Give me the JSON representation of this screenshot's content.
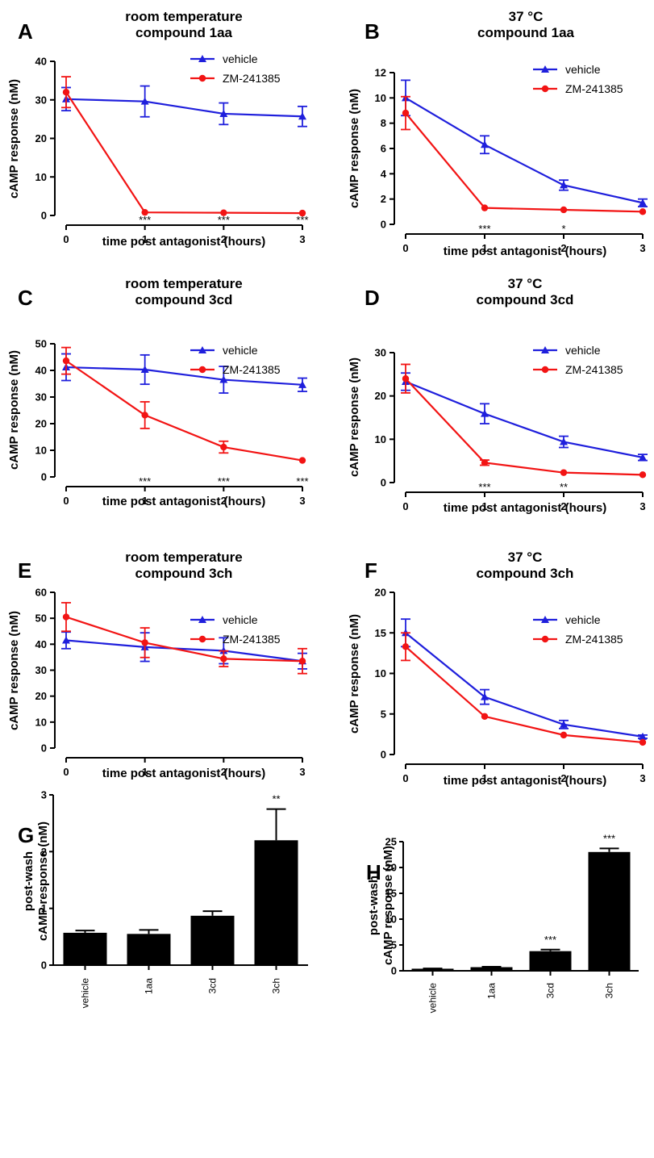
{
  "colors": {
    "vehicle": "#1f1fdc",
    "antagonist": "#f21414",
    "bar": "#000000",
    "axis": "#000000"
  },
  "chart_data": [
    {
      "panel": "A",
      "type": "line",
      "title_lines": [
        "room temperature",
        "compound 1aa"
      ],
      "xlabel": "time post antagonist (hours)",
      "ylabel": "cAMP response (nM)",
      "x": [
        0,
        1,
        2,
        3
      ],
      "xticks": [
        0,
        1,
        2,
        3
      ],
      "yticks": [
        0,
        10,
        20,
        30,
        40
      ],
      "ylim": [
        0,
        40
      ],
      "series": [
        {
          "name": "vehicle",
          "marker": "triangle",
          "values": [
            30.2,
            29.6,
            26.4,
            25.7
          ],
          "errors": [
            3.0,
            4.0,
            2.8,
            2.6
          ]
        },
        {
          "name": "ZM-241385",
          "marker": "circle",
          "values": [
            32.0,
            0.8,
            0.7,
            0.6
          ],
          "errors": [
            4.0,
            0,
            0,
            0
          ]
        }
      ],
      "annotations": [
        {
          "x": 1,
          "text": "***"
        },
        {
          "x": 2,
          "text": "***"
        },
        {
          "x": 3,
          "text": "***"
        }
      ],
      "legend": "top-right"
    },
    {
      "panel": "B",
      "type": "line",
      "title_lines": [
        "37 °C",
        "compound 1aa"
      ],
      "xlabel": "time post antagonist (hours)",
      "ylabel": "cAMP response (nM)",
      "x": [
        0,
        1,
        2,
        3
      ],
      "xticks": [
        0,
        1,
        2,
        3
      ],
      "yticks": [
        0,
        2,
        4,
        6,
        8,
        10,
        12
      ],
      "ylim": [
        0,
        12
      ],
      "series": [
        {
          "name": "vehicle",
          "marker": "triangle",
          "values": [
            10.0,
            6.3,
            3.1,
            1.7
          ],
          "errors": [
            1.4,
            0.7,
            0.4,
            0.3
          ]
        },
        {
          "name": "ZM-241385",
          "marker": "circle",
          "values": [
            8.8,
            1.3,
            1.15,
            1.0
          ],
          "errors": [
            1.3,
            0,
            0,
            0
          ]
        }
      ],
      "annotations": [
        {
          "x": 1,
          "text": "***"
        },
        {
          "x": 2,
          "text": "*"
        }
      ],
      "legend": "top-right"
    },
    {
      "panel": "C",
      "type": "line",
      "title_lines": [
        "room temperature",
        "compound 3cd"
      ],
      "xlabel": "time post antagonist (hours)",
      "ylabel": "cAMP response (nM)",
      "x": [
        0,
        1,
        2,
        3
      ],
      "xticks": [
        0,
        1,
        2,
        3
      ],
      "yticks": [
        0,
        10,
        20,
        30,
        40,
        50
      ],
      "ylim": [
        0,
        50
      ],
      "series": [
        {
          "name": "vehicle",
          "marker": "triangle",
          "values": [
            41.2,
            40.3,
            36.5,
            34.6
          ],
          "errors": [
            5.0,
            5.5,
            5.0,
            2.5
          ]
        },
        {
          "name": "ZM-241385",
          "marker": "circle",
          "values": [
            43.6,
            23.2,
            11.2,
            6.2
          ],
          "errors": [
            5.0,
            5.0,
            2.2,
            0
          ]
        }
      ],
      "annotations": [
        {
          "x": 1,
          "text": "***"
        },
        {
          "x": 2,
          "text": "***"
        },
        {
          "x": 3,
          "text": "***"
        }
      ],
      "legend": "top-right"
    },
    {
      "panel": "D",
      "type": "line",
      "title_lines": [
        "37 °C",
        "compound 3cd"
      ],
      "xlabel": "time post antagonist (hours)",
      "ylabel": "cAMP response (nM)",
      "x": [
        0,
        1,
        2,
        3
      ],
      "xticks": [
        0,
        1,
        2,
        3
      ],
      "yticks": [
        0,
        10,
        20,
        30
      ],
      "ylim": [
        0,
        30
      ],
      "series": [
        {
          "name": "vehicle",
          "marker": "triangle",
          "values": [
            23.3,
            15.9,
            9.4,
            5.8
          ],
          "errors": [
            2.0,
            2.3,
            1.3,
            0.7
          ]
        },
        {
          "name": "ZM-241385",
          "marker": "circle",
          "values": [
            24.0,
            4.6,
            2.3,
            1.8
          ],
          "errors": [
            3.3,
            0.6,
            0,
            0
          ]
        }
      ],
      "annotations": [
        {
          "x": 1,
          "text": "***"
        },
        {
          "x": 2,
          "text": "**"
        }
      ],
      "legend": "top-right"
    },
    {
      "panel": "E",
      "type": "line",
      "title_lines": [
        "room temperature",
        "compound 3ch"
      ],
      "xlabel": "time post antagonist (hours)",
      "ylabel": "cAMP response (nM)",
      "x": [
        0,
        1,
        2,
        3
      ],
      "xticks": [
        0,
        1,
        2,
        3
      ],
      "yticks": [
        0,
        10,
        20,
        30,
        40,
        50,
        60
      ],
      "ylim": [
        0,
        60
      ],
      "series": [
        {
          "name": "vehicle",
          "marker": "triangle",
          "values": [
            41.5,
            38.9,
            37.5,
            33.5
          ],
          "errors": [
            3.2,
            5.5,
            5.0,
            3.0
          ]
        },
        {
          "name": "ZM-241385",
          "marker": "circle",
          "values": [
            50.5,
            40.6,
            34.4,
            33.5
          ],
          "errors": [
            5.5,
            5.7,
            3.0,
            4.8
          ]
        }
      ],
      "annotations": [],
      "legend": "top-right"
    },
    {
      "panel": "F",
      "type": "line",
      "title_lines": [
        "37 °C",
        "compound 3ch"
      ],
      "xlabel": "time post antagonist (hours)",
      "ylabel": "cAMP response (nM)",
      "x": [
        0,
        1,
        2,
        3
      ],
      "xticks": [
        0,
        1,
        2,
        3
      ],
      "yticks": [
        0,
        5,
        10,
        15,
        20
      ],
      "ylim": [
        0,
        20
      ],
      "series": [
        {
          "name": "vehicle",
          "marker": "triangle",
          "values": [
            15.0,
            7.1,
            3.7,
            2.2
          ],
          "errors": [
            1.7,
            0.9,
            0.5,
            0.2
          ]
        },
        {
          "name": "ZM-241385",
          "marker": "circle",
          "values": [
            13.3,
            4.7,
            2.4,
            1.5
          ],
          "errors": [
            1.7,
            0,
            0,
            0
          ]
        }
      ],
      "annotations": [],
      "legend": "top-right"
    },
    {
      "panel": "G",
      "type": "bar",
      "ylabel_lines": [
        "post-wash",
        "cAMP response  (nM)"
      ],
      "categories": [
        "vehicle",
        "1aa",
        "3cd",
        "3ch"
      ],
      "values": [
        0.57,
        0.55,
        0.87,
        2.2
      ],
      "errors": [
        0.04,
        0.07,
        0.08,
        0.55
      ],
      "yticks": [
        0,
        1,
        2,
        3
      ],
      "ylim": [
        0,
        3
      ],
      "annotations": [
        {
          "category": "3ch",
          "text": "**"
        }
      ]
    },
    {
      "panel": "H",
      "type": "bar",
      "ylabel_lines": [
        "post-wash",
        "cAMP response  (nM)"
      ],
      "categories": [
        "vehicle",
        "1aa",
        "3cd",
        "3ch"
      ],
      "values": [
        0.4,
        0.7,
        3.8,
        23.0
      ],
      "errors": [
        0.05,
        0.08,
        0.3,
        0.7
      ],
      "yticks": [
        0,
        5,
        10,
        15,
        20,
        25
      ],
      "ylim": [
        0,
        25
      ],
      "annotations": [
        {
          "category": "3cd",
          "text": "***"
        },
        {
          "category": "3ch",
          "text": "***"
        }
      ]
    }
  ]
}
